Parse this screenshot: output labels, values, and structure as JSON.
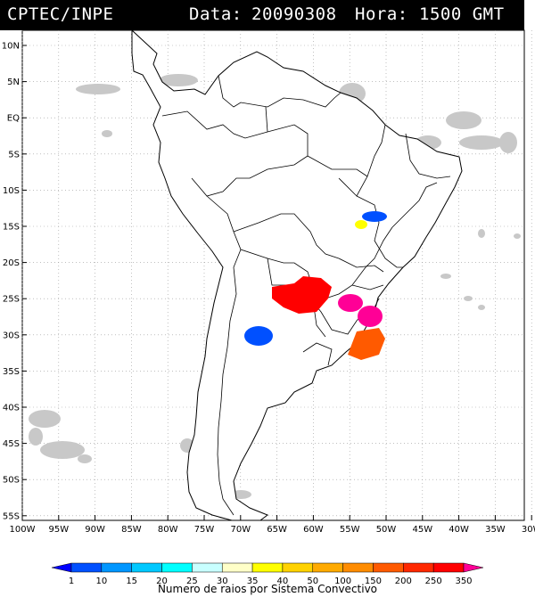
{
  "header": {
    "source": "CPTEC/INPE",
    "date_label": "Data:",
    "date_value": "20090308",
    "time_label": "Hora:",
    "time_value": "1500 GMT"
  },
  "lat_labels": [
    "10N",
    "5N",
    "EQ",
    "5S",
    "10S",
    "15S",
    "20S",
    "25S",
    "30S",
    "35S",
    "40S",
    "45S",
    "50S",
    "55S"
  ],
  "lon_labels": [
    "100W",
    "95W",
    "90W",
    "85W",
    "80W",
    "75W",
    "70W",
    "65W",
    "60W",
    "55W",
    "50W",
    "45W",
    "40W",
    "35W",
    "30W"
  ],
  "legend": {
    "ticks": [
      "1",
      "10",
      "15",
      "20",
      "25",
      "30",
      "35",
      "40",
      "50",
      "100",
      "150",
      "200",
      "250",
      "350"
    ],
    "colors": [
      "#0000ff",
      "#0050ff",
      "#0096ff",
      "#00c8ff",
      "#00ffff",
      "#c8ffff",
      "#ffffc8",
      "#ffff00",
      "#ffd200",
      "#ffaa00",
      "#ff8c00",
      "#ff5a00",
      "#ff2800",
      "#ff0000",
      "#ff0096"
    ],
    "caption": "Numero de raios por Sistema Convectivo"
  },
  "map": {
    "land_color": "#ffffff",
    "cloud_color": "#c8c8c8",
    "systems": [
      {
        "name": "blue-system-bahia",
        "color": "#0050ff"
      },
      {
        "name": "yellow-system-goias",
        "color": "#ffff00"
      },
      {
        "name": "red-system-paraguay",
        "color": "#ff0000"
      },
      {
        "name": "magenta-system-parana",
        "color": "#ff0096"
      },
      {
        "name": "magenta-system-santa-catarina",
        "color": "#ff0096"
      },
      {
        "name": "orange-system-rio-grande-do-sul",
        "color": "#ff5a00"
      },
      {
        "name": "blue-system-argentina",
        "color": "#0050ff"
      }
    ]
  }
}
